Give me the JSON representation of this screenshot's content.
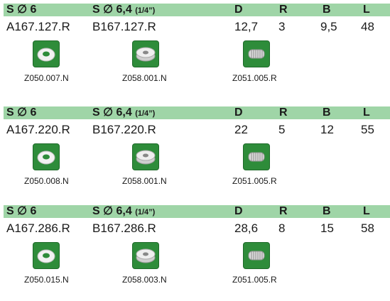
{
  "columns": {
    "s6": "S ∅ 6",
    "s64": "S ∅ 6,4",
    "s64_inch": "(1/4”)",
    "d": "D",
    "r": "R",
    "b": "B",
    "l": "L"
  },
  "blocks": [
    {
      "s6": "A167.127.R",
      "s64": "B167.127.R",
      "d": "12,7",
      "r": "3",
      "b": "9,5",
      "l": "48",
      "thumb1": "Z050.007.N",
      "thumb2": "Z058.001.N",
      "thumb3": "Z051.005.R"
    },
    {
      "s6": "A167.220.R",
      "s64": "B167.220.R",
      "d": "22",
      "r": "5",
      "b": "12",
      "l": "55",
      "thumb1": "Z050.008.N",
      "thumb2": "Z058.001.N",
      "thumb3": "Z051.005.R"
    },
    {
      "s6": "A167.286.R",
      "s64": "B167.286.R",
      "d": "28,6",
      "r": "8",
      "b": "15",
      "l": "58",
      "thumb1": "Z050.015.N",
      "thumb2": "Z058.003.N",
      "thumb3": "Z051.005.R"
    }
  ]
}
